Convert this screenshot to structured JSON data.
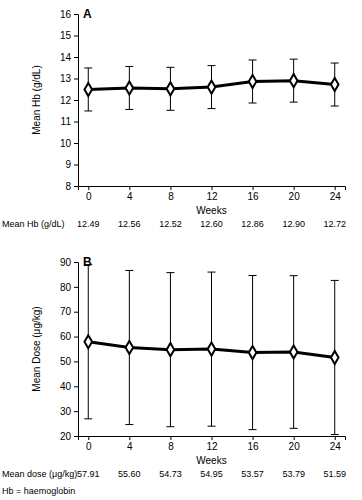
{
  "chart_data": [
    {
      "type": "line",
      "title": "A",
      "x_label": "Weeks",
      "y_label": "Mean Hb (g/dL)",
      "x": [
        0,
        4,
        8,
        12,
        16,
        20,
        24
      ],
      "xlim": [
        -1,
        25
      ],
      "xticks": [
        0,
        4,
        8,
        12,
        16,
        20,
        24
      ],
      "ylim": [
        8,
        16
      ],
      "yticks": [
        8,
        9,
        10,
        11,
        12,
        13,
        14,
        15,
        16
      ],
      "grid": false,
      "series": [
        {
          "color": "#000000",
          "marker": "diamond",
          "line_style": "solid",
          "values": [
            12.49,
            12.56,
            12.52,
            12.6,
            12.86,
            12.9,
            12.72
          ],
          "errors": [
            1.0,
            1.0,
            1.0,
            1.0,
            1.0,
            1.0,
            1.0
          ],
          "values_label": "Mean Hb (g/dL)",
          "value_labels": [
            "12.49",
            "12.56",
            "12.52",
            "12.60",
            "12.86",
            "12.90",
            "12.72"
          ]
        }
      ]
    },
    {
      "type": "line",
      "title": "B",
      "x_label": "Weeks",
      "y_label": "Mean Dose (μg/kg)",
      "x": [
        0,
        4,
        8,
        12,
        16,
        20,
        24
      ],
      "xlim": [
        -1,
        25
      ],
      "xticks": [
        0,
        4,
        8,
        12,
        16,
        20,
        24
      ],
      "ylim": [
        20,
        90
      ],
      "yticks": [
        20,
        30,
        40,
        50,
        60,
        70,
        80,
        90
      ],
      "grid": false,
      "series": [
        {
          "color": "#000000",
          "marker": "diamond",
          "line_style": "solid",
          "values": [
            57.91,
            55.6,
            54.73,
            54.95,
            53.57,
            53.79,
            51.59
          ],
          "errors": [
            31,
            31,
            31,
            31,
            31,
            30.7,
            31
          ],
          "values_label": "Mean dose (μg/kg)",
          "value_labels": [
            "57.91",
            "55.60",
            "54.73",
            "54.95",
            "53.57",
            "53.79",
            "51.59"
          ]
        }
      ]
    }
  ],
  "footnote": "Hb = haemoglobin"
}
